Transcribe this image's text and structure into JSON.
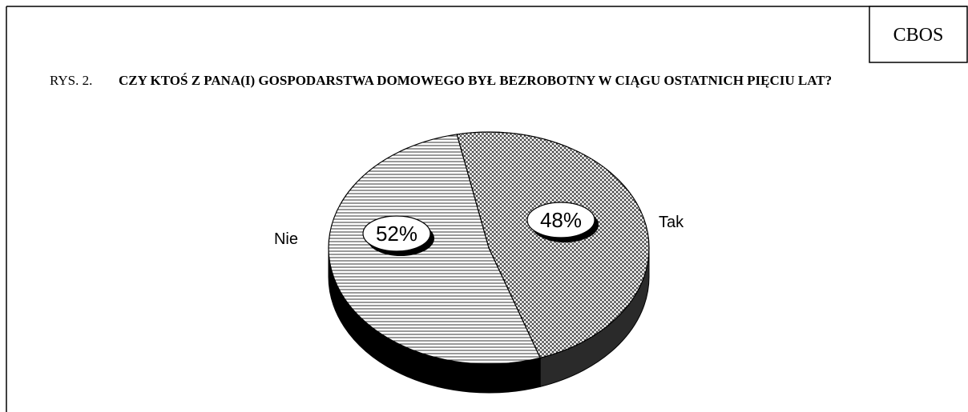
{
  "chart_data": {
    "type": "pie",
    "source": "CBOS",
    "figure_label": "RYS. 2.",
    "title": "CZY KTOŚ Z PANA(I) GOSPODARSTWA DOMOWEGO BYŁ BEZROBOTNY W CIĄGU OSTATNICH PIĘCIU LAT?",
    "categories": [
      "Tak",
      "Nie"
    ],
    "values": [
      48,
      52
    ],
    "value_labels": [
      "48%",
      "52%"
    ]
  }
}
